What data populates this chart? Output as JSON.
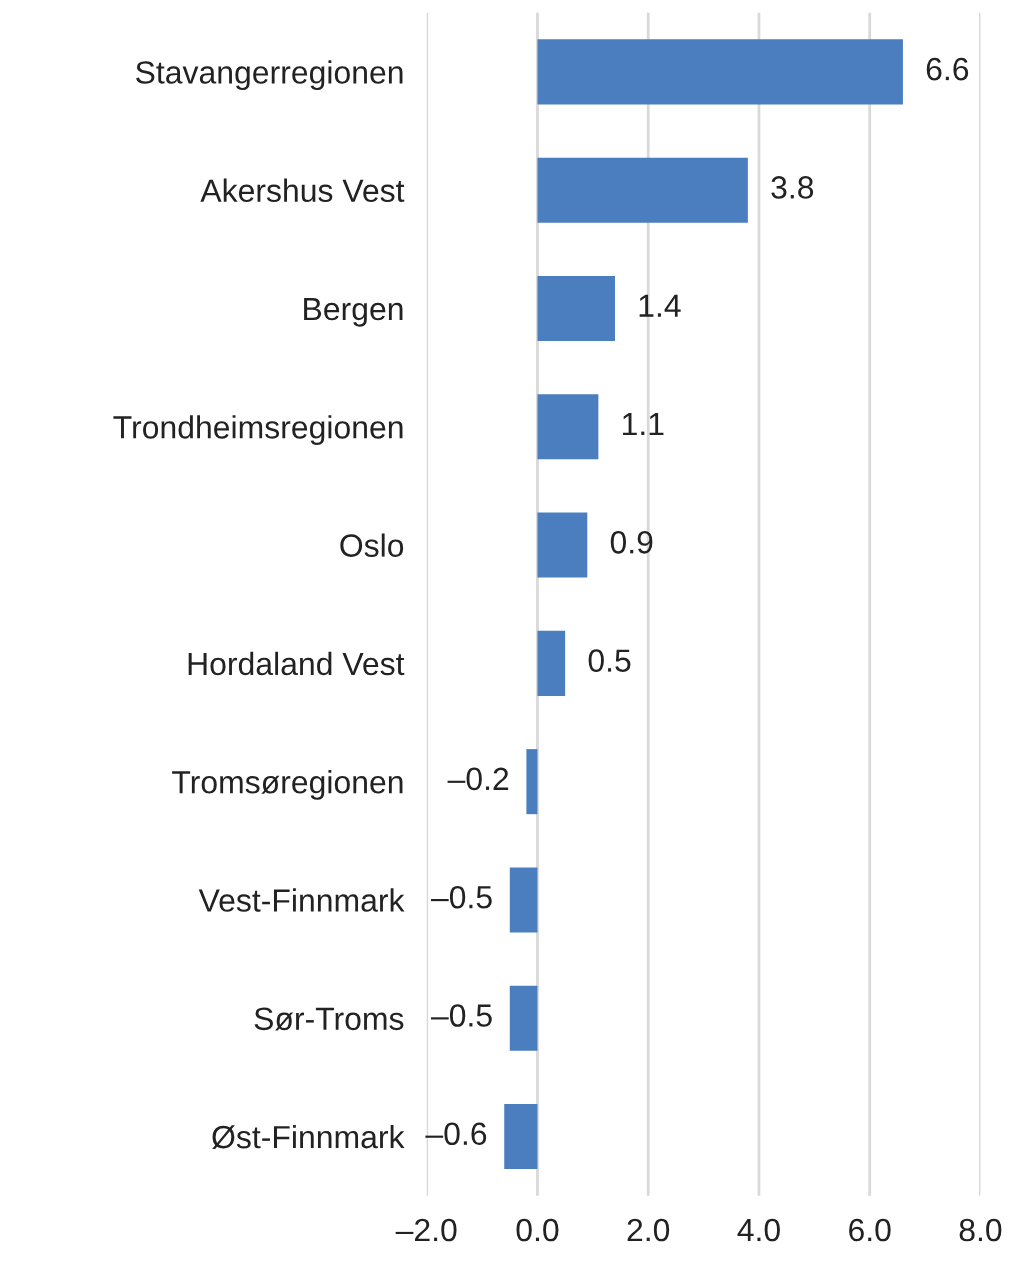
{
  "chart_data": {
    "type": "bar",
    "orientation": "horizontal",
    "categories": [
      "Stavangerregionen",
      "Akershus Vest",
      "Bergen",
      "Trondheimsregionen",
      "Oslo",
      "Hordaland Vest",
      "Tromsøregionen",
      "Vest-Finnmark",
      "Sør-Troms",
      "Øst-Finnmark"
    ],
    "values": [
      6.6,
      3.8,
      1.4,
      1.1,
      0.9,
      0.5,
      -0.2,
      -0.5,
      -0.5,
      -0.6
    ],
    "value_labels": [
      "6.6",
      "3.8",
      "1.4",
      "1.1",
      "0.9",
      "0.5",
      "–0.2",
      "–0.5",
      "–0.5",
      "–0.6"
    ],
    "color": "#4a7ebf",
    "xlim": [
      -2,
      8
    ],
    "xticks": [
      {
        "value": -2,
        "label": "–2.0"
      },
      {
        "value": 0,
        "label": "0.0"
      },
      {
        "value": 2,
        "label": "2.0"
      },
      {
        "value": 4,
        "label": "4.0"
      },
      {
        "value": 6,
        "label": "6.0"
      },
      {
        "value": 8,
        "label": "8.0"
      }
    ],
    "grid": "x"
  }
}
